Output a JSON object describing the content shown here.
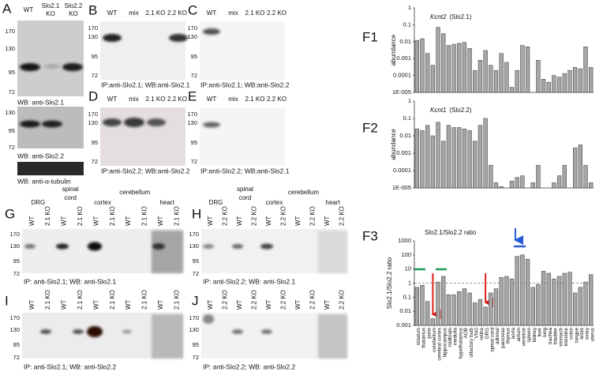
{
  "panels": {
    "A": {
      "label": "A",
      "lanes": [
        [
          "WT"
        ],
        [
          "Slo2.1",
          "KO"
        ],
        [
          "Slo2.2",
          "KO"
        ]
      ],
      "markers_1": [
        170,
        130,
        95,
        72
      ],
      "caption_1": "WB: anti-Slo2.1",
      "markers_2": [
        130,
        95,
        72
      ],
      "caption_2": "WB: anti-Slo2.2",
      "caption_3": "WB: anti-α-tubulin"
    },
    "B": {
      "label": "B",
      "lanes": [
        "WT",
        "mix",
        "2.1 KO",
        "2.2 KO"
      ],
      "markers": [
        170,
        130,
        95,
        72
      ],
      "caption": "IP:anti-Slo2.1; WB:anti-Slo2.1"
    },
    "C": {
      "label": "C",
      "lanes": [
        "WT",
        "mix",
        "2.1 KO",
        "2.2 KO"
      ],
      "markers": [
        170,
        130,
        95,
        72
      ],
      "caption": "IP:anti-Slo2.1; WB:anti-Slo2.2"
    },
    "D": {
      "label": "D",
      "lanes": [
        "WT",
        "mix",
        "2.1 KO",
        "2.2 KO"
      ],
      "markers": [
        170,
        130,
        95,
        72
      ],
      "caption": "IP:anti-Slo2.2; WB:anti-Slo2.2"
    },
    "E": {
      "label": "E",
      "lanes": [
        "WT",
        "mix",
        "2.1 KO",
        "2.2 KO"
      ],
      "markers": [
        170,
        130,
        95,
        72
      ],
      "caption": "IP:anti-Slo2.2; WB:anti-Slo2.1"
    },
    "G": {
      "label": "G",
      "tissues": [
        [
          "DRG"
        ],
        [
          "spinal",
          "cord"
        ],
        [
          "cortex"
        ],
        [
          "cerebellum"
        ],
        [
          "heart"
        ]
      ],
      "lanes": [
        "WT",
        "2.1 KO",
        "WT",
        "2.1 KO",
        "WT",
        "2.1 KO",
        "WT",
        "2.1 KO",
        "WT",
        "2.1 KO"
      ],
      "markers": [
        170,
        130,
        95,
        72
      ],
      "caption": "IP: anti-Slo2.1; WB: anti-Slo2.1"
    },
    "H": {
      "label": "H",
      "tissues": [
        [
          "DRG"
        ],
        [
          "spinal",
          "cord"
        ],
        [
          "cortex"
        ],
        [
          "cerebellum"
        ],
        [
          "heart"
        ]
      ],
      "lanes": [
        "WT",
        "2.2 KO",
        "WT",
        "2.2 KO",
        "WT",
        "2.2 KO",
        "WT",
        "2.2 KO",
        "WT",
        "2.2 KO"
      ],
      "markers": [
        170,
        130,
        95,
        72
      ],
      "caption": "IP: anti-Slo2.2; WB: anti-Slo2.1"
    },
    "I": {
      "label": "I",
      "lanes": [
        "WT",
        "2.1 KO",
        "WT",
        "2.1 KO",
        "WT",
        "2.1 KO",
        "WT",
        "2.1 KO",
        "WT",
        "2.1 KO"
      ],
      "markers": [
        170,
        130,
        95,
        72
      ],
      "caption": "IP: anti-Slo2.1; WB: anti-Slo2.2"
    },
    "J": {
      "label": "J",
      "lanes": [
        "WT",
        "2.2 KO",
        "WT",
        "2.2 KO",
        "WT",
        "2.2 KO",
        "WT",
        "2.2 KO",
        "WT",
        "2.2 KO"
      ],
      "markers": [
        170,
        130,
        95,
        72
      ],
      "caption": "IP: anti-Slo2.2; WB: anti-Slo2.2"
    }
  },
  "chart_data": [
    {
      "type": "bar",
      "panel": "F1",
      "title": {
        "gene": "Kcnt2",
        "protein": "(Slo2.1)"
      },
      "y_label": "abundance",
      "log_y": true,
      "ylim": [
        1e-05,
        1
      ],
      "yticks": [
        1,
        0.1,
        0.01,
        0.001,
        0.0001,
        {
          "value": 1e-05,
          "label": "1E-005"
        }
      ],
      "color": "#a6a6a6",
      "values": [
        0.012,
        0.015,
        0.002,
        0.0004,
        0.07,
        0.03,
        0.006,
        0.007,
        0.008,
        0.009,
        0.004,
        0.0002,
        0.0008,
        0.003,
        0.0004,
        0.0002,
        0.002,
        0.0006,
        2e-05,
        0.0002,
        0.006,
        0.005,
        1e-05,
        0.0008,
        6e-05,
        4e-05,
        0.0001,
        8e-05,
        0.00013,
        0.0002,
        0.0003,
        0.00025,
        0.005,
        0.0003
      ]
    },
    {
      "type": "bar",
      "panel": "F2",
      "title": {
        "gene": "Kcnt1",
        "protein": "(Slo2.2)"
      },
      "y_label": "abundance",
      "log_y": true,
      "ylim": [
        1e-05,
        1
      ],
      "yticks": [
        1,
        0.1,
        0.01,
        0.001,
        0.0001,
        {
          "value": 1e-05,
          "label": "1E-005"
        }
      ],
      "color": "#a6a6a6",
      "values": [
        0.025,
        0.02,
        0.04,
        0.01,
        0.06,
        0.005,
        0.04,
        0.03,
        0.03,
        0.025,
        0.02,
        0.005,
        0.04,
        0.1,
        0.0002,
        2e-05,
        1.2e-05,
        1e-05,
        2.5e-05,
        4e-05,
        5e-05,
        1e-05,
        2e-05,
        0.0002,
        1e-05,
        1e-05,
        2e-05,
        5e-05,
        0.0002,
        1e-05,
        0.002,
        0.003,
        0.0002,
        2e-05
      ]
    },
    {
      "type": "bar",
      "panel": "F3",
      "title": "Slo2.1/Slo2.2 ratio",
      "y_label": "Slo2.1/Slo2.2 ratio",
      "log_y": true,
      "ylim": [
        0.001,
        1000
      ],
      "yticks": [
        1000,
        100,
        10,
        1,
        0.1,
        0.01,
        0.001
      ],
      "color": "#a6a6a6",
      "reference_line": 1,
      "categories": [
        "striatum",
        "thalamus",
        "pons",
        "cerebellum",
        "cerebral cortex",
        "hippocampus",
        "midbrain",
        "medulla",
        "hypothalamus",
        "AOB",
        "olfactory bulb",
        "VNO",
        "retina",
        "DRG",
        "spinal cord",
        "adrenal",
        "pancreas",
        "thymus",
        "aorta",
        "atrium",
        "ventricle",
        "spleen",
        "kidney",
        "liver",
        "lung",
        "trachea",
        "bladder",
        "stomach",
        "intestine",
        "colon",
        "tongue",
        "testis",
        "ovary",
        "uterus"
      ],
      "values": [
        0.5,
        0.7,
        0.05,
        0.003,
        1.2,
        3,
        0.15,
        0.15,
        0.25,
        0.4,
        0.2,
        0.04,
        0.07,
        0.02,
        0.2,
        0.4,
        2.5,
        3,
        2,
        80,
        100,
        50,
        0.5,
        0.8,
        7,
        5,
        2,
        3,
        5,
        6,
        0.2,
        0.5,
        1.2,
        4
      ]
    }
  ]
}
